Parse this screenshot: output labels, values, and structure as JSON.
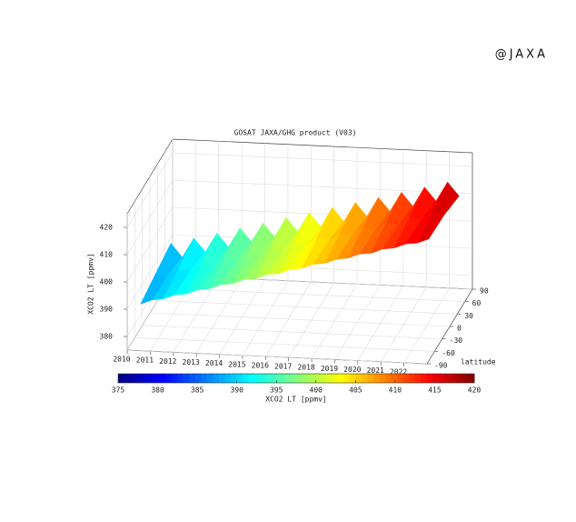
{
  "watermark": "@JAXA",
  "chart_data": {
    "type": "surface",
    "title": "GOSAT JAXA/GHG product (V03)",
    "x": [
      2010.25,
      2010.75,
      2011.25,
      2011.75,
      2012.25,
      2012.75,
      2013.25,
      2013.75,
      2014.25,
      2014.75,
      2015.25,
      2015.75,
      2016.25,
      2016.75,
      2017.25,
      2017.75,
      2018.25,
      2018.75,
      2019.25,
      2019.75,
      2020.25,
      2020.75,
      2021.25,
      2021.75,
      2022.25,
      2022.75
    ],
    "latitudes": [
      -60,
      0,
      60
    ],
    "z": [
      [
        387.4,
        389.1,
        389.7,
        391.4,
        391.9,
        393.6,
        394.2,
        395.9,
        396.4,
        398.1,
        398.7,
        400.4,
        400.9,
        402.6,
        403.2,
        404.9,
        405.4,
        407.1,
        407.7,
        409.4,
        409.9,
        411.6,
        412.2,
        413.9,
        414.4,
        416.1
      ],
      [
        389.5,
        388.6,
        391.8,
        390.9,
        394.0,
        393.1,
        396.3,
        395.4,
        398.5,
        397.6,
        400.8,
        399.9,
        403.0,
        402.1,
        405.3,
        404.4,
        407.5,
        406.6,
        409.8,
        408.9,
        412.0,
        411.1,
        414.3,
        413.4,
        416.5,
        415.6
      ],
      [
        391.5,
        386.6,
        393.8,
        388.9,
        396.0,
        391.1,
        398.3,
        393.4,
        400.5,
        395.6,
        402.8,
        397.9,
        405.0,
        400.1,
        407.3,
        402.4,
        409.5,
        404.6,
        411.8,
        406.9,
        414.0,
        409.1,
        416.3,
        411.4,
        418.5,
        413.6
      ]
    ],
    "xlim": [
      2010,
      2023
    ],
    "xticks": [
      2010,
      2011,
      2012,
      2013,
      2014,
      2015,
      2016,
      2017,
      2018,
      2019,
      2020,
      2021,
      2022
    ],
    "ylim": [
      -90,
      90
    ],
    "yticks": [
      -90,
      -60,
      -30,
      0,
      30,
      60,
      90
    ],
    "ylabel": "latitude",
    "zlim": [
      375,
      425
    ],
    "zticks": [
      380,
      390,
      400,
      410,
      420
    ],
    "zlabel": "XCO2 LT [ppmv]",
    "colormap": "jet",
    "grid": true,
    "colorbar": {
      "clim": [
        375,
        420
      ],
      "ticks": [
        375,
        380,
        385,
        390,
        395,
        400,
        405,
        410,
        415,
        420
      ],
      "label": "XCO2 LT [ppmv]"
    }
  }
}
